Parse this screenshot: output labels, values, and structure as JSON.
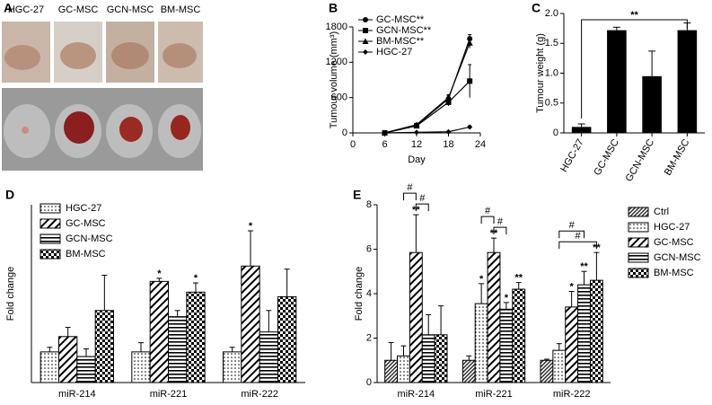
{
  "photos": {
    "panel": "A",
    "labels": [
      "HGC-27",
      "GC-MSC",
      "GCN-MSC",
      "BM-MSC"
    ]
  },
  "chart_data": [
    {
      "panel": "B",
      "type": "line",
      "xlabel": "Day",
      "ylabel": "Tumour volume (mm³)",
      "x": [
        6,
        12,
        18,
        22
      ],
      "xlim": [
        0,
        24
      ],
      "xticks": [
        0,
        6,
        12,
        18,
        24
      ],
      "ylim": [
        0,
        1800
      ],
      "yticks": [
        0,
        600,
        1200,
        1800
      ],
      "legend": "upper left",
      "series": [
        {
          "name": "GC-MSC**",
          "color": "#000000",
          "marker": "circle",
          "values": [
            0,
            130,
            580,
            1600
          ],
          "errors": [
            0,
            15,
            50,
            70
          ]
        },
        {
          "name": "GCN-MSC**",
          "color": "#000000",
          "marker": "square",
          "values": [
            0,
            120,
            520,
            880
          ],
          "errors": [
            0,
            15,
            60,
            280
          ]
        },
        {
          "name": "BM-MSC**",
          "color": "#000000",
          "marker": "triangle",
          "values": [
            0,
            140,
            600,
            1530
          ],
          "errors": [
            0,
            15,
            50,
            90
          ]
        },
        {
          "name": "HGC-27",
          "color": "#000000",
          "marker": "diamond",
          "values": [
            0,
            10,
            20,
            100
          ],
          "errors": [
            0,
            2,
            5,
            20
          ]
        }
      ]
    },
    {
      "panel": "C",
      "type": "bar",
      "ylabel": "Tumour weight (g)",
      "categories": [
        "HGC-27",
        "GC-MSC",
        "GCN-MSC",
        "BM-MSC"
      ],
      "values": [
        0.1,
        1.72,
        0.95,
        1.72
      ],
      "errors": [
        0.05,
        0.05,
        0.42,
        0.12
      ],
      "color": "#000000",
      "ylim": [
        0,
        2
      ],
      "yticks": [
        0,
        0.5,
        {
          "value": 1,
          "label": "1.0"
        },
        1.5,
        {
          "value": 2,
          "label": "2.0"
        }
      ],
      "brackets": [
        {
          "text": "**",
          "from": 0,
          "to": 3
        }
      ]
    },
    {
      "panel": "D",
      "type": "grouped_bar",
      "ylabel": "Fold change",
      "categories": [
        "miR-214",
        "miR-221",
        "miR-222"
      ],
      "ylim": [
        0,
        5.8
      ],
      "legend": "upper left",
      "series": [
        {
          "name": "HGC-27",
          "color": "#000000",
          "pattern": "dots",
          "values": [
            1,
            1,
            1
          ],
          "errors": [
            0.15,
            0.3,
            0.15
          ]
        },
        {
          "name": "GC-MSC",
          "color": "#000000",
          "pattern": "diagonal",
          "values": [
            1.5,
            3.3,
            3.8
          ],
          "errors": [
            0.3,
            0.1,
            1.15
          ]
        },
        {
          "name": "GCN-MSC",
          "color": "#000000",
          "pattern": "horizontal",
          "values": [
            0.85,
            2.15,
            1.65
          ],
          "errors": [
            0.25,
            0.2,
            0.7
          ]
        },
        {
          "name": "BM-MSC",
          "color": "#000000",
          "pattern": "checker",
          "values": [
            2.35,
            2.95,
            2.8
          ],
          "errors": [
            1.15,
            0.3,
            0.9
          ]
        }
      ],
      "annotations": [
        {
          "text": "*",
          "series": 1,
          "category": 1
        },
        {
          "text": "*",
          "series": 3,
          "category": 1
        },
        {
          "text": "*",
          "series": 1,
          "category": 2
        }
      ]
    },
    {
      "panel": "E",
      "type": "grouped_bar",
      "ylabel": "Fold change",
      "categories": [
        "miR-214",
        "miR-221",
        "miR-222"
      ],
      "ylim": [
        0,
        8
      ],
      "yticks": [
        0,
        2,
        4,
        6,
        8
      ],
      "legend": "right",
      "series": [
        {
          "name": "Ctrl",
          "color": "#000000",
          "pattern": "finediag",
          "values": [
            1,
            1,
            1
          ],
          "errors": [
            0.8,
            0.2,
            0.05
          ]
        },
        {
          "name": "HGC-27",
          "color": "#000000",
          "pattern": "dots",
          "values": [
            1.2,
            3.55,
            1.45
          ],
          "errors": [
            0.45,
            0.9,
            0.3
          ]
        },
        {
          "name": "GC-MSC",
          "color": "#000000",
          "pattern": "diagonal",
          "values": [
            5.85,
            5.85,
            3.4
          ],
          "errors": [
            1.7,
            0.65,
            0.7
          ]
        },
        {
          "name": "GCN-MSC",
          "color": "#000000",
          "pattern": "horizontal",
          "values": [
            2.15,
            3.3,
            4.4
          ],
          "errors": [
            0.9,
            0.3,
            0.6
          ]
        },
        {
          "name": "BM-MSC",
          "color": "#000000",
          "pattern": "checker",
          "values": [
            2.15,
            4.2,
            4.6
          ],
          "errors": [
            1.3,
            0.3,
            1.25
          ]
        }
      ],
      "annotations": [
        {
          "text": "**",
          "series": 2,
          "category": 0
        },
        {
          "text": "*",
          "series": 1,
          "category": 1
        },
        {
          "text": "**",
          "series": 2,
          "category": 1
        },
        {
          "text": "*",
          "series": 3,
          "category": 1
        },
        {
          "text": "**",
          "series": 4,
          "category": 1
        },
        {
          "text": "*",
          "series": 2,
          "category": 2
        },
        {
          "text": "**",
          "series": 3,
          "category": 2
        },
        {
          "text": "**",
          "series": 4,
          "category": 2
        }
      ],
      "brackets": [
        {
          "text": "#",
          "category": 0,
          "from": 1,
          "to": 2
        },
        {
          "text": "#",
          "category": 0,
          "from": 2,
          "to": 3
        },
        {
          "text": "#",
          "category": 1,
          "from": 1,
          "to": 2
        },
        {
          "text": "#",
          "category": 1,
          "from": 2,
          "to": 3
        },
        {
          "text": "#",
          "category": 2,
          "from": 1,
          "to": 3
        },
        {
          "text": "#",
          "category": 2,
          "from": 1,
          "to": 4
        }
      ]
    }
  ]
}
